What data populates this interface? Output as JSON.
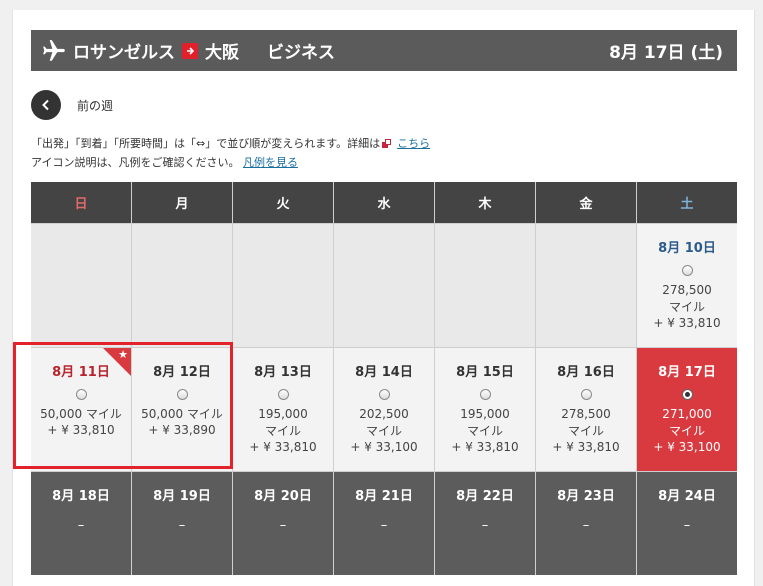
{
  "header": {
    "origin": "ロサンゼルス",
    "destination": "大阪",
    "cabin": "ビジネス",
    "date_label": "8月 17日 (土)"
  },
  "prev_week": {
    "label": "前の週"
  },
  "notes": {
    "line1": "「出発」「到着」「所要時間」は「⇔」で並び順が変えられます。詳細は",
    "line1_link": "こちら",
    "line2": "アイコン説明は、凡例をご確認ください。",
    "line2_link": "凡例を見る"
  },
  "weekdays": [
    "日",
    "月",
    "火",
    "水",
    "木",
    "金",
    "土"
  ],
  "week1": {
    "sat": {
      "date": "8月 10日",
      "miles": "278,500 マイル",
      "tax": "+ ¥ 33,810"
    }
  },
  "week2": [
    {
      "date": "8月 11日",
      "miles": "50,000 マイル",
      "tax": "+ ¥ 33,810"
    },
    {
      "date": "8月 12日",
      "miles": "50,000 マイル",
      "tax": "+ ¥ 33,890"
    },
    {
      "date": "8月 13日",
      "miles": "195,000 マイル",
      "tax": "+ ¥ 33,810"
    },
    {
      "date": "8月 14日",
      "miles": "202,500 マイル",
      "tax": "+ ¥ 33,100"
    },
    {
      "date": "8月 15日",
      "miles": "195,000 マイル",
      "tax": "+ ¥ 33,810"
    },
    {
      "date": "8月 16日",
      "miles": "278,500 マイル",
      "tax": "+ ¥ 33,810"
    },
    {
      "date": "8月 17日",
      "miles": "271,000 マイル",
      "tax": "+ ¥ 33,100"
    }
  ],
  "week3": [
    {
      "date": "8月 18日",
      "value": "–"
    },
    {
      "date": "8月 19日",
      "value": "–"
    },
    {
      "date": "8月 20日",
      "value": "–"
    },
    {
      "date": "8月 21日",
      "value": "–"
    },
    {
      "date": "8月 22日",
      "value": "–"
    },
    {
      "date": "8月 23日",
      "value": "–"
    },
    {
      "date": "8月 24日",
      "value": "–"
    }
  ],
  "colors": {
    "header_bg": "#5b5b5b",
    "accent_red": "#d83a3f",
    "unavailable": "#5c5c5c",
    "link": "#1a6fa0"
  }
}
